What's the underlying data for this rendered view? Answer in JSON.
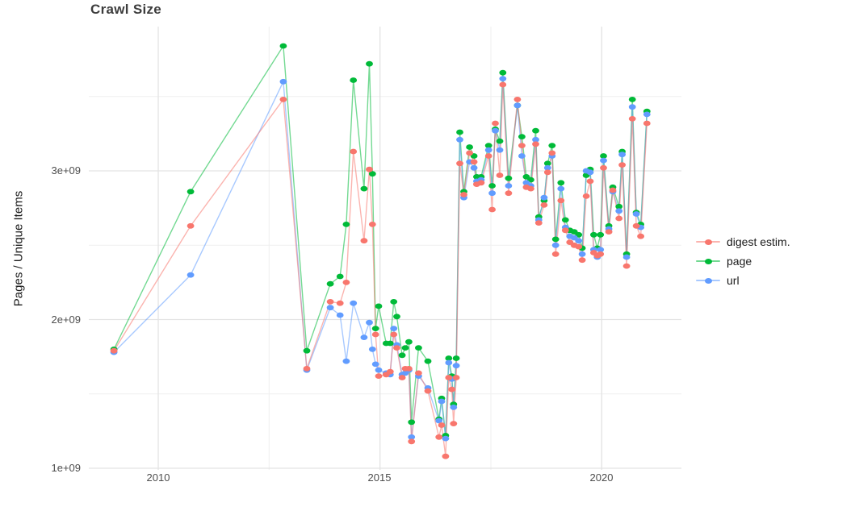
{
  "chart_data": {
    "type": "line",
    "title": "Crawl Size",
    "ylabel": "Pages / Unique Items",
    "xlabel": "",
    "grid": true,
    "legend_position": "right",
    "xlim": [
      2008.55,
      2021.78
    ],
    "ylim_billions": [
      1.02,
      3.97
    ],
    "x_ticks": [
      {
        "label": "2010",
        "year": 2010
      },
      {
        "label": "2015",
        "year": 2015
      },
      {
        "label": "2020",
        "year": 2020
      }
    ],
    "x_minor_ticks": [
      2012.5,
      2017.5
    ],
    "y_ticks": [
      {
        "label": "1e+09",
        "value": 1
      },
      {
        "label": "2e+09",
        "value": 2
      },
      {
        "label": "3e+09",
        "value": 3
      }
    ],
    "y_minor_ticks": [
      1.5,
      2.5,
      3.5
    ],
    "y_unit": "pages, axis labels in 1e9",
    "series": [
      {
        "name": "digest estim.",
        "color": "#F8766D",
        "points": [
          [
            2009.0,
            1.79
          ],
          [
            2010.73,
            2.63
          ],
          [
            2012.82,
            3.48
          ],
          [
            2013.35,
            1.67
          ],
          [
            2013.88,
            2.12
          ],
          [
            2014.1,
            2.11
          ],
          [
            2014.24,
            2.25
          ],
          [
            2014.4,
            3.13
          ],
          [
            2014.64,
            2.53
          ],
          [
            2014.76,
            3.01
          ],
          [
            2014.83,
            2.64
          ],
          [
            2014.9,
            1.9
          ],
          [
            2014.97,
            1.62
          ],
          [
            2015.14,
            1.63
          ],
          [
            2015.23,
            1.65
          ],
          [
            2015.31,
            1.9
          ],
          [
            2015.38,
            1.81
          ],
          [
            2015.5,
            1.61
          ],
          [
            2015.57,
            1.67
          ],
          [
            2015.65,
            1.67
          ],
          [
            2015.71,
            1.18
          ],
          [
            2015.87,
            1.64
          ],
          [
            2016.08,
            1.52
          ],
          [
            2016.33,
            1.21
          ],
          [
            2016.39,
            1.29
          ],
          [
            2016.48,
            1.08
          ],
          [
            2016.55,
            1.61
          ],
          [
            2016.62,
            1.53
          ],
          [
            2016.66,
            1.3
          ],
          [
            2016.72,
            1.61
          ],
          [
            2016.8,
            3.05
          ],
          [
            2016.89,
            2.84
          ],
          [
            2017.02,
            3.12
          ],
          [
            2017.12,
            3.06
          ],
          [
            2017.18,
            2.91
          ],
          [
            2017.28,
            2.92
          ],
          [
            2017.45,
            3.1
          ],
          [
            2017.53,
            2.74
          ],
          [
            2017.6,
            3.32
          ],
          [
            2017.7,
            2.97
          ],
          [
            2017.77,
            3.58
          ],
          [
            2017.9,
            2.85
          ],
          [
            2018.1,
            3.48
          ],
          [
            2018.2,
            3.17
          ],
          [
            2018.3,
            2.89
          ],
          [
            2018.4,
            2.88
          ],
          [
            2018.51,
            3.18
          ],
          [
            2018.58,
            2.65
          ],
          [
            2018.7,
            2.77
          ],
          [
            2018.78,
            2.99
          ],
          [
            2018.88,
            3.12
          ],
          [
            2018.96,
            2.44
          ],
          [
            2019.08,
            2.8
          ],
          [
            2019.18,
            2.6
          ],
          [
            2019.28,
            2.52
          ],
          [
            2019.38,
            2.5
          ],
          [
            2019.48,
            2.49
          ],
          [
            2019.56,
            2.4
          ],
          [
            2019.65,
            2.83
          ],
          [
            2019.74,
            2.93
          ],
          [
            2019.82,
            2.45
          ],
          [
            2019.9,
            2.43
          ],
          [
            2019.97,
            2.44
          ],
          [
            2020.04,
            3.02
          ],
          [
            2020.16,
            2.59
          ],
          [
            2020.25,
            2.87
          ],
          [
            2020.39,
            2.68
          ],
          [
            2020.46,
            3.04
          ],
          [
            2020.56,
            2.36
          ],
          [
            2020.69,
            3.35
          ],
          [
            2020.78,
            2.63
          ],
          [
            2020.88,
            2.56
          ],
          [
            2021.02,
            3.32
          ]
        ]
      },
      {
        "name": "page",
        "color": "#00BA38",
        "points": [
          [
            2009.0,
            1.8
          ],
          [
            2010.73,
            2.86
          ],
          [
            2012.82,
            3.84
          ],
          [
            2013.35,
            1.79
          ],
          [
            2013.88,
            2.24
          ],
          [
            2014.1,
            2.29
          ],
          [
            2014.24,
            2.64
          ],
          [
            2014.4,
            3.61
          ],
          [
            2014.64,
            2.88
          ],
          [
            2014.76,
            3.72
          ],
          [
            2014.83,
            2.98
          ],
          [
            2014.9,
            1.94
          ],
          [
            2014.97,
            2.09
          ],
          [
            2015.14,
            1.84
          ],
          [
            2015.23,
            1.84
          ],
          [
            2015.31,
            2.12
          ],
          [
            2015.38,
            2.02
          ],
          [
            2015.5,
            1.76
          ],
          [
            2015.57,
            1.81
          ],
          [
            2015.65,
            1.85
          ],
          [
            2015.71,
            1.31
          ],
          [
            2015.87,
            1.81
          ],
          [
            2016.08,
            1.72
          ],
          [
            2016.33,
            1.33
          ],
          [
            2016.39,
            1.47
          ],
          [
            2016.48,
            1.22
          ],
          [
            2016.55,
            1.74
          ],
          [
            2016.62,
            1.62
          ],
          [
            2016.66,
            1.43
          ],
          [
            2016.72,
            1.74
          ],
          [
            2016.8,
            3.26
          ],
          [
            2016.89,
            2.86
          ],
          [
            2017.02,
            3.16
          ],
          [
            2017.12,
            3.1
          ],
          [
            2017.18,
            2.96
          ],
          [
            2017.28,
            2.96
          ],
          [
            2017.45,
            3.17
          ],
          [
            2017.53,
            2.9
          ],
          [
            2017.6,
            3.28
          ],
          [
            2017.7,
            3.2
          ],
          [
            2017.77,
            3.66
          ],
          [
            2017.9,
            2.95
          ],
          [
            2018.1,
            3.44
          ],
          [
            2018.2,
            3.23
          ],
          [
            2018.3,
            2.96
          ],
          [
            2018.4,
            2.94
          ],
          [
            2018.51,
            3.27
          ],
          [
            2018.58,
            2.69
          ],
          [
            2018.7,
            2.8
          ],
          [
            2018.78,
            3.05
          ],
          [
            2018.88,
            3.17
          ],
          [
            2018.96,
            2.54
          ],
          [
            2019.08,
            2.92
          ],
          [
            2019.18,
            2.67
          ],
          [
            2019.28,
            2.6
          ],
          [
            2019.38,
            2.59
          ],
          [
            2019.48,
            2.57
          ],
          [
            2019.56,
            2.48
          ],
          [
            2019.65,
            2.97
          ],
          [
            2019.74,
            3.01
          ],
          [
            2019.82,
            2.57
          ],
          [
            2019.9,
            2.48
          ],
          [
            2019.97,
            2.57
          ],
          [
            2020.04,
            3.1
          ],
          [
            2020.16,
            2.63
          ],
          [
            2020.25,
            2.89
          ],
          [
            2020.39,
            2.76
          ],
          [
            2020.46,
            3.13
          ],
          [
            2020.56,
            2.44
          ],
          [
            2020.69,
            3.48
          ],
          [
            2020.78,
            2.72
          ],
          [
            2020.88,
            2.64
          ],
          [
            2021.02,
            3.4
          ]
        ]
      },
      {
        "name": "url",
        "color": "#619CFF",
        "points": [
          [
            2009.0,
            1.78
          ],
          [
            2010.73,
            2.3
          ],
          [
            2012.82,
            3.6
          ],
          [
            2013.35,
            1.66
          ],
          [
            2013.88,
            2.08
          ],
          [
            2014.1,
            2.03
          ],
          [
            2014.24,
            1.72
          ],
          [
            2014.4,
            2.11
          ],
          [
            2014.64,
            1.88
          ],
          [
            2014.76,
            1.98
          ],
          [
            2014.83,
            1.8
          ],
          [
            2014.9,
            1.7
          ],
          [
            2014.97,
            1.66
          ],
          [
            2015.14,
            1.64
          ],
          [
            2015.23,
            1.63
          ],
          [
            2015.31,
            1.94
          ],
          [
            2015.38,
            1.83
          ],
          [
            2015.5,
            1.63
          ],
          [
            2015.57,
            1.64
          ],
          [
            2015.65,
            1.66
          ],
          [
            2015.71,
            1.21
          ],
          [
            2015.87,
            1.62
          ],
          [
            2016.08,
            1.54
          ],
          [
            2016.33,
            1.32
          ],
          [
            2016.39,
            1.45
          ],
          [
            2016.48,
            1.2
          ],
          [
            2016.55,
            1.71
          ],
          [
            2016.62,
            1.6
          ],
          [
            2016.66,
            1.41
          ],
          [
            2016.72,
            1.69
          ],
          [
            2016.8,
            3.21
          ],
          [
            2016.89,
            2.82
          ],
          [
            2017.02,
            3.06
          ],
          [
            2017.12,
            3.02
          ],
          [
            2017.18,
            2.93
          ],
          [
            2017.28,
            2.94
          ],
          [
            2017.45,
            3.14
          ],
          [
            2017.53,
            2.85
          ],
          [
            2017.6,
            3.27
          ],
          [
            2017.7,
            3.14
          ],
          [
            2017.77,
            3.62
          ],
          [
            2017.9,
            2.9
          ],
          [
            2018.1,
            3.44
          ],
          [
            2018.2,
            3.1
          ],
          [
            2018.3,
            2.92
          ],
          [
            2018.4,
            2.9
          ],
          [
            2018.51,
            3.21
          ],
          [
            2018.58,
            2.67
          ],
          [
            2018.7,
            2.82
          ],
          [
            2018.78,
            3.02
          ],
          [
            2018.88,
            3.1
          ],
          [
            2018.96,
            2.5
          ],
          [
            2019.08,
            2.88
          ],
          [
            2019.18,
            2.62
          ],
          [
            2019.28,
            2.56
          ],
          [
            2019.38,
            2.55
          ],
          [
            2019.48,
            2.53
          ],
          [
            2019.56,
            2.44
          ],
          [
            2019.65,
            3.0
          ],
          [
            2019.74,
            2.99
          ],
          [
            2019.82,
            2.47
          ],
          [
            2019.9,
            2.42
          ],
          [
            2019.97,
            2.47
          ],
          [
            2020.04,
            3.07
          ],
          [
            2020.16,
            2.61
          ],
          [
            2020.25,
            2.86
          ],
          [
            2020.39,
            2.73
          ],
          [
            2020.46,
            3.11
          ],
          [
            2020.56,
            2.42
          ],
          [
            2020.69,
            3.43
          ],
          [
            2020.78,
            2.71
          ],
          [
            2020.88,
            2.62
          ],
          [
            2021.02,
            3.38
          ]
        ]
      }
    ]
  }
}
